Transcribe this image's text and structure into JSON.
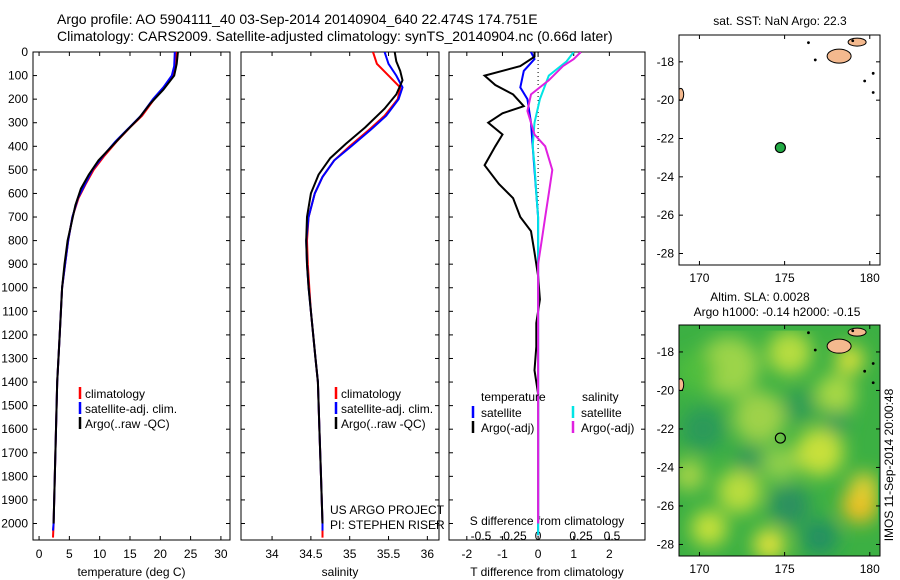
{
  "header": {
    "line1": "Argo profile: AO 5904111_40 03-Sep-2014 20140904_640 22.474S 174.751E",
    "line2": "Climatology: CARS2009. Satellite-adjusted climatology: synTS_20140904.nc (0.66d later)"
  },
  "colors": {
    "climatology": "#ff0000",
    "satellite": "#0000ff",
    "argo": "#000000",
    "salinity_sat": "#00e5e5",
    "salinity_argo": "#e020e0",
    "land": "#f4b98e"
  },
  "depth_axis": {
    "ticks": [
      0,
      100,
      200,
      300,
      400,
      500,
      600,
      700,
      800,
      900,
      1000,
      1100,
      1200,
      1300,
      1400,
      1500,
      1600,
      1700,
      1800,
      1900,
      2000
    ]
  },
  "chart_data": [
    {
      "type": "line",
      "xlabel": "temperature (deg C)",
      "ylabel": "",
      "xlim": [
        -1,
        31.5
      ],
      "ylim": [
        2070,
        0
      ],
      "xticks": [
        "0",
        "5",
        "10",
        "15",
        "20",
        "25",
        "30"
      ],
      "legend": [
        "climatology",
        "satellite-adj. clim.",
        "Argo(..raw -QC)"
      ],
      "series": [
        {
          "name": "climatology",
          "color": "#ff0000",
          "points": [
            [
              22.6,
              0
            ],
            [
              22.5,
              60
            ],
            [
              22.0,
              100
            ],
            [
              20.6,
              150
            ],
            [
              19.0,
              200
            ],
            [
              17.0,
              270
            ],
            [
              15.0,
              320
            ],
            [
              12.8,
              380
            ],
            [
              10.8,
              440
            ],
            [
              9.0,
              500
            ],
            [
              7.7,
              560
            ],
            [
              6.5,
              620
            ],
            [
              5.5,
              700
            ],
            [
              4.8,
              800
            ],
            [
              4.3,
              900
            ],
            [
              3.8,
              1000
            ],
            [
              3.4,
              1200
            ],
            [
              3.0,
              1400
            ],
            [
              2.8,
              1600
            ],
            [
              2.6,
              1800
            ],
            [
              2.4,
              2000
            ],
            [
              2.3,
              2060
            ]
          ]
        },
        {
          "name": "satellite-adj. clim.",
          "color": "#0000ff",
          "points": [
            [
              22.4,
              0
            ],
            [
              22.3,
              60
            ],
            [
              21.9,
              100
            ],
            [
              20.5,
              150
            ],
            [
              18.8,
              200
            ],
            [
              16.8,
              270
            ],
            [
              14.9,
              320
            ],
            [
              12.6,
              380
            ],
            [
              10.6,
              440
            ],
            [
              8.8,
              500
            ],
            [
              7.6,
              560
            ],
            [
              6.4,
              620
            ],
            [
              5.5,
              700
            ],
            [
              4.8,
              800
            ],
            [
              4.3,
              900
            ],
            [
              3.8,
              1000
            ],
            [
              3.4,
              1200
            ],
            [
              3.0,
              1400
            ],
            [
              2.8,
              1600
            ],
            [
              2.6,
              1800
            ],
            [
              2.4,
              2000
            ],
            [
              2.3,
              2030
            ]
          ]
        },
        {
          "name": "Argo(..raw -QC)",
          "color": "#000000",
          "points": [
            [
              22.9,
              0
            ],
            [
              22.7,
              50
            ],
            [
              22.3,
              100
            ],
            [
              20.5,
              160
            ],
            [
              18.3,
              220
            ],
            [
              16.5,
              280
            ],
            [
              14.2,
              340
            ],
            [
              12.0,
              400
            ],
            [
              9.8,
              460
            ],
            [
              8.2,
              520
            ],
            [
              6.9,
              580
            ],
            [
              6.0,
              650
            ],
            [
              5.4,
              720
            ],
            [
              4.7,
              800
            ],
            [
              4.2,
              900
            ],
            [
              3.8,
              1000
            ],
            [
              3.4,
              1200
            ],
            [
              3.0,
              1400
            ],
            [
              2.8,
              1600
            ],
            [
              2.6,
              1800
            ],
            [
              2.4,
              2000
            ]
          ]
        }
      ]
    },
    {
      "type": "line",
      "xlabel": "salinity",
      "ylabel": "",
      "xlim": [
        33.6,
        36.15
      ],
      "ylim": [
        2070,
        0
      ],
      "xticks": [
        "34",
        "34.5",
        "35",
        "35.5",
        "36"
      ],
      "legend": [
        "climatology",
        "satellite-adj. clim.",
        "Argo(..raw -QC)"
      ],
      "annotations": [
        "US ARGO PROJECT",
        "PI: STEPHEN RISER"
      ],
      "series": [
        {
          "name": "climatology",
          "color": "#ff0000",
          "points": [
            [
              35.3,
              0
            ],
            [
              35.35,
              50
            ],
            [
              35.5,
              100
            ],
            [
              35.65,
              150
            ],
            [
              35.62,
              200
            ],
            [
              35.45,
              270
            ],
            [
              35.25,
              330
            ],
            [
              35.0,
              400
            ],
            [
              34.8,
              460
            ],
            [
              34.65,
              530
            ],
            [
              34.55,
              600
            ],
            [
              34.47,
              700
            ],
            [
              34.45,
              800
            ],
            [
              34.46,
              900
            ],
            [
              34.48,
              1000
            ],
            [
              34.5,
              1100
            ],
            [
              34.53,
              1200
            ],
            [
              34.56,
              1300
            ],
            [
              34.59,
              1400
            ],
            [
              34.61,
              1600
            ],
            [
              34.63,
              1800
            ],
            [
              34.65,
              2000
            ],
            [
              34.65,
              2060
            ]
          ]
        },
        {
          "name": "satellite-adj. clim.",
          "color": "#0000ff",
          "points": [
            [
              35.45,
              0
            ],
            [
              35.5,
              50
            ],
            [
              35.6,
              100
            ],
            [
              35.68,
              150
            ],
            [
              35.63,
              200
            ],
            [
              35.47,
              270
            ],
            [
              35.27,
              330
            ],
            [
              35.02,
              400
            ],
            [
              34.8,
              460
            ],
            [
              34.65,
              530
            ],
            [
              34.55,
              600
            ],
            [
              34.47,
              700
            ],
            [
              34.44,
              800
            ],
            [
              34.45,
              900
            ],
            [
              34.47,
              1000
            ],
            [
              34.5,
              1100
            ],
            [
              34.53,
              1200
            ],
            [
              34.56,
              1300
            ],
            [
              34.59,
              1400
            ],
            [
              34.61,
              1600
            ],
            [
              34.63,
              1800
            ],
            [
              34.65,
              2000
            ],
            [
              34.65,
              2030
            ]
          ]
        },
        {
          "name": "Argo(..raw -QC)",
          "color": "#000000",
          "points": [
            [
              35.58,
              0
            ],
            [
              35.6,
              40
            ],
            [
              35.65,
              80
            ],
            [
              35.68,
              120
            ],
            [
              35.6,
              180
            ],
            [
              35.45,
              240
            ],
            [
              35.2,
              320
            ],
            [
              34.95,
              390
            ],
            [
              34.75,
              450
            ],
            [
              34.6,
              520
            ],
            [
              34.5,
              600
            ],
            [
              34.45,
              700
            ],
            [
              34.44,
              800
            ],
            [
              34.45,
              900
            ],
            [
              34.47,
              1000
            ],
            [
              34.5,
              1100
            ],
            [
              34.53,
              1200
            ],
            [
              34.56,
              1300
            ],
            [
              34.59,
              1400
            ],
            [
              34.61,
              1600
            ],
            [
              34.63,
              1800
            ],
            [
              34.65,
              2000
            ]
          ]
        }
      ]
    },
    {
      "type": "line",
      "xlabel": "T difference from climatology",
      "x2label": "S difference from climatology",
      "xlim": [
        -2.5,
        3.0
      ],
      "ylim": [
        2070,
        0
      ],
      "xticks": [
        "-2",
        "-1",
        "0",
        "1",
        "2"
      ],
      "x2ticks": [
        "-0.5",
        "-0.25",
        "0",
        "0.25",
        "0.5"
      ],
      "legend_titles": [
        "temperature",
        "salinity"
      ],
      "legend": [
        "satellite",
        "Argo(-adj)",
        "satellite",
        "Argo(-adj)"
      ],
      "series": [
        {
          "name": "temperature satellite",
          "color": "#0000ff",
          "points": [
            [
              -0.2,
              0
            ],
            [
              -0.1,
              30
            ],
            [
              -0.4,
              80
            ],
            [
              -0.5,
              150
            ],
            [
              -0.3,
              200
            ],
            [
              -0.2,
              300
            ],
            [
              -0.15,
              400
            ],
            [
              -0.1,
              500
            ],
            [
              -0.05,
              600
            ],
            [
              0,
              700
            ],
            [
              0,
              800
            ],
            [
              0,
              1000
            ],
            [
              0,
              1500
            ],
            [
              0,
              2000
            ],
            [
              0,
              2050
            ]
          ]
        },
        {
          "name": "temperature Argo(-adj)",
          "color": "#000000",
          "points": [
            [
              -0.1,
              0
            ],
            [
              -0.1,
              20
            ],
            [
              -0.5,
              60
            ],
            [
              -1.5,
              100
            ],
            [
              -1.2,
              140
            ],
            [
              -0.7,
              180
            ],
            [
              -0.4,
              230
            ],
            [
              -1.0,
              260
            ],
            [
              -1.4,
              300
            ],
            [
              -1.0,
              350
            ],
            [
              -1.2,
              400
            ],
            [
              -1.5,
              480
            ],
            [
              -1.1,
              560
            ],
            [
              -0.7,
              620
            ],
            [
              -0.5,
              700
            ],
            [
              -0.2,
              760
            ],
            [
              -0.1,
              850
            ],
            [
              0.0,
              950
            ],
            [
              0.05,
              1050
            ],
            [
              -0.05,
              1150
            ],
            [
              -0.05,
              1250
            ],
            [
              -0.1,
              1350
            ],
            [
              0.0,
              1450
            ],
            [
              0.0,
              1550
            ],
            [
              0.0,
              1700
            ],
            [
              0.0,
              1850
            ],
            [
              0.0,
              2000
            ]
          ]
        },
        {
          "name": "salinity satellite",
          "color": "#00e5e5",
          "points": [
            [
              1.0,
              0
            ],
            [
              0.8,
              40
            ],
            [
              0.3,
              100
            ],
            [
              0.05,
              200
            ],
            [
              -0.1,
              300
            ],
            [
              -0.15,
              400
            ],
            [
              -0.1,
              480
            ],
            [
              -0.05,
              600
            ],
            [
              0,
              700
            ],
            [
              0,
              900
            ],
            [
              0,
              1200
            ],
            [
              0,
              1600
            ],
            [
              0,
              2000
            ],
            [
              0,
              2050
            ]
          ]
        },
        {
          "name": "salinity Argo(-adj)",
          "color": "#e020e0",
          "points": [
            [
              1.2,
              0
            ],
            [
              1.0,
              30
            ],
            [
              0.7,
              60
            ],
            [
              0.3,
              120
            ],
            [
              -0.2,
              180
            ],
            [
              -0.3,
              250
            ],
            [
              -0.2,
              300
            ],
            [
              -0.1,
              350
            ],
            [
              0.2,
              400
            ],
            [
              0.4,
              500
            ],
            [
              0.3,
              600
            ],
            [
              0.2,
              700
            ],
            [
              0.1,
              800
            ],
            [
              0.0,
              900
            ],
            [
              0,
              1100
            ],
            [
              0,
              1500
            ],
            [
              0,
              2000
            ]
          ]
        }
      ]
    },
    {
      "type": "scatter",
      "title": "sat. SST: NaN Argo: 22.3",
      "xlim": [
        168.8,
        180.6
      ],
      "ylim": [
        -28.6,
        -16.6
      ],
      "xticks": [
        "170",
        "175",
        "180"
      ],
      "yticks": [
        "-18",
        "-20",
        "-22",
        "-24",
        "-26",
        "-28"
      ],
      "points": [
        {
          "x": 174.751,
          "y": -22.474
        }
      ]
    },
    {
      "type": "heatmap",
      "title_line1": "Altim. SLA: 0.0028",
      "title_line2": "Argo h1000: -0.14 h2000: -0.15",
      "xlim": [
        168.8,
        180.6
      ],
      "ylim": [
        -28.6,
        -16.6
      ],
      "xticks": [
        "170",
        "175",
        "180"
      ],
      "yticks": [
        "-18",
        "-20",
        "-22",
        "-24",
        "-26",
        "-28"
      ],
      "points": [
        {
          "x": 174.751,
          "y": -22.474
        }
      ]
    }
  ],
  "side_label": "IMOS 11-Sep-2014 20:00:48"
}
